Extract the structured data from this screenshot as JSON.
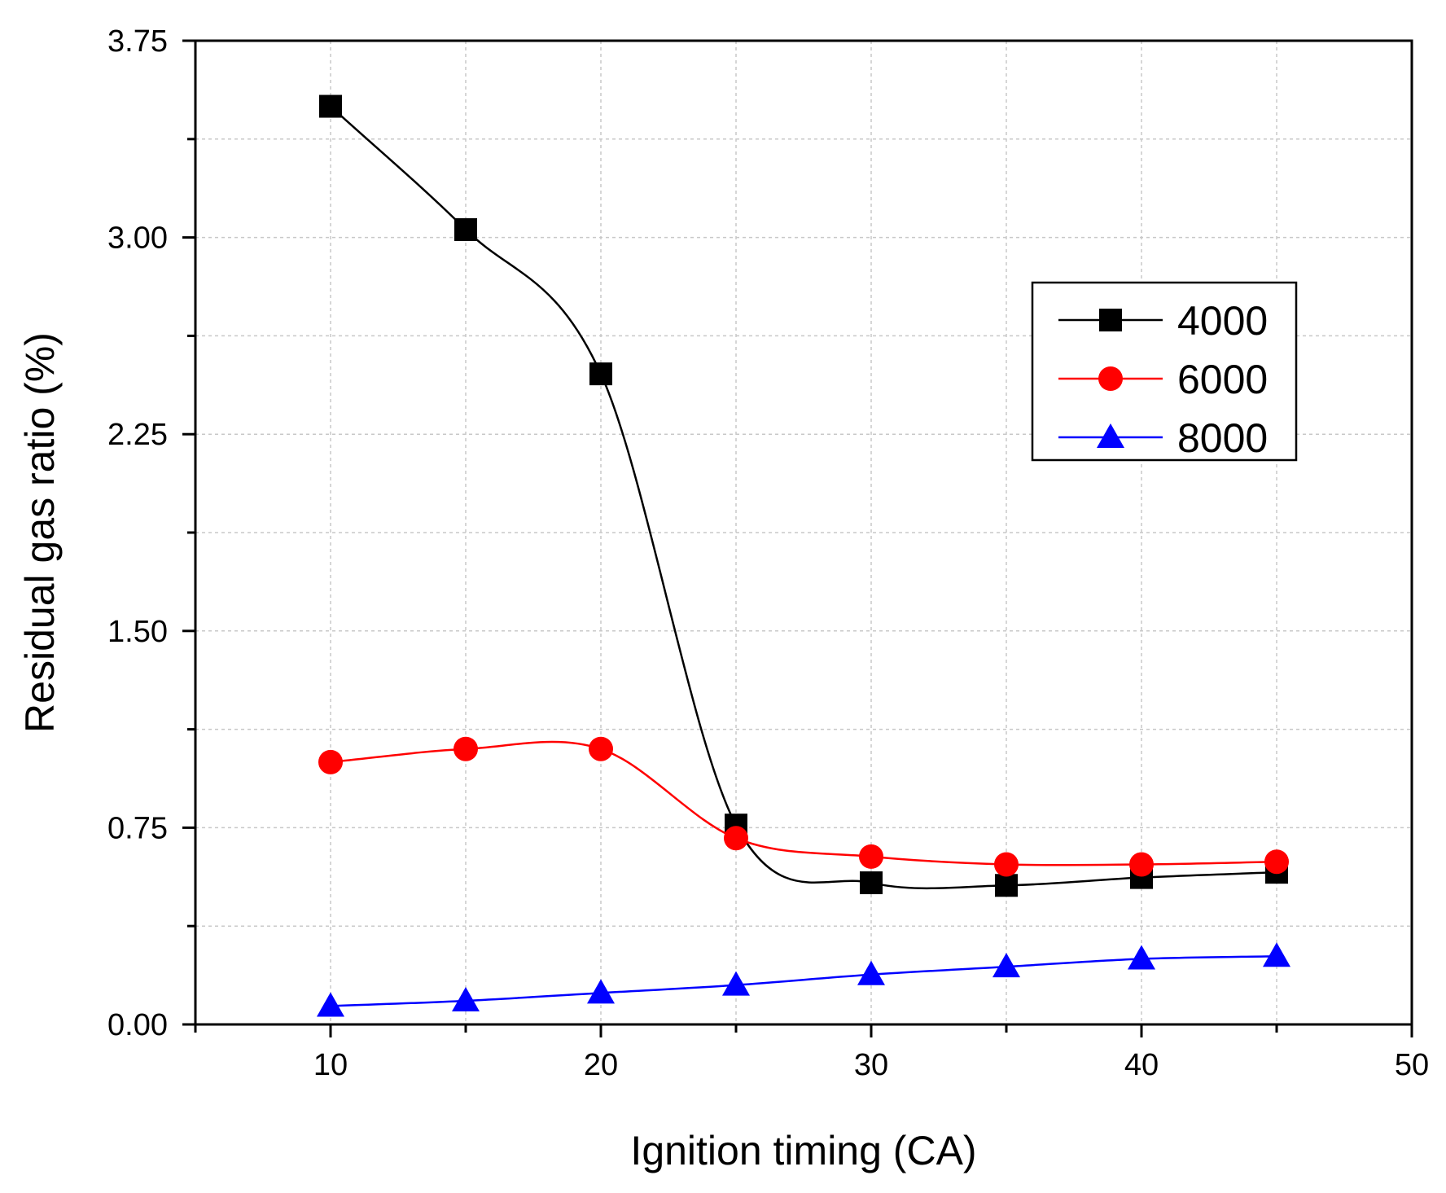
{
  "chart_data": {
    "type": "line",
    "xlabel": "Ignition timing (CA)",
    "ylabel": "Residual gas ratio (%)",
    "xlim": [
      5,
      50
    ],
    "ylim": [
      0,
      3.75
    ],
    "x_ticks": [
      10,
      20,
      30,
      40,
      50
    ],
    "x_tick_labels": [
      "10",
      "20",
      "30",
      "40",
      "50"
    ],
    "y_ticks": [
      0,
      0.75,
      1.5,
      2.25,
      3.0,
      3.75
    ],
    "y_tick_labels": [
      "0.00",
      "0.75",
      "1.50",
      "2.25",
      "3.00",
      "3.75"
    ],
    "grid": true,
    "legend_position": "upper-right",
    "smooth": true,
    "series": [
      {
        "name": "4000",
        "color": "#000000",
        "marker": "square",
        "x": [
          10,
          15,
          20,
          25,
          30,
          35,
          40,
          45
        ],
        "y": [
          3.5,
          3.03,
          2.48,
          0.76,
          0.54,
          0.53,
          0.56,
          0.58
        ]
      },
      {
        "name": "6000",
        "color": "#ff0000",
        "marker": "circle",
        "x": [
          10,
          15,
          20,
          25,
          30,
          35,
          40,
          45
        ],
        "y": [
          1.0,
          1.05,
          1.05,
          0.71,
          0.64,
          0.61,
          0.61,
          0.62
        ]
      },
      {
        "name": "8000",
        "color": "#0000ff",
        "marker": "triangle",
        "x": [
          10,
          15,
          20,
          25,
          30,
          35,
          40,
          45
        ],
        "y": [
          0.07,
          0.09,
          0.12,
          0.15,
          0.19,
          0.22,
          0.25,
          0.26
        ]
      }
    ]
  }
}
